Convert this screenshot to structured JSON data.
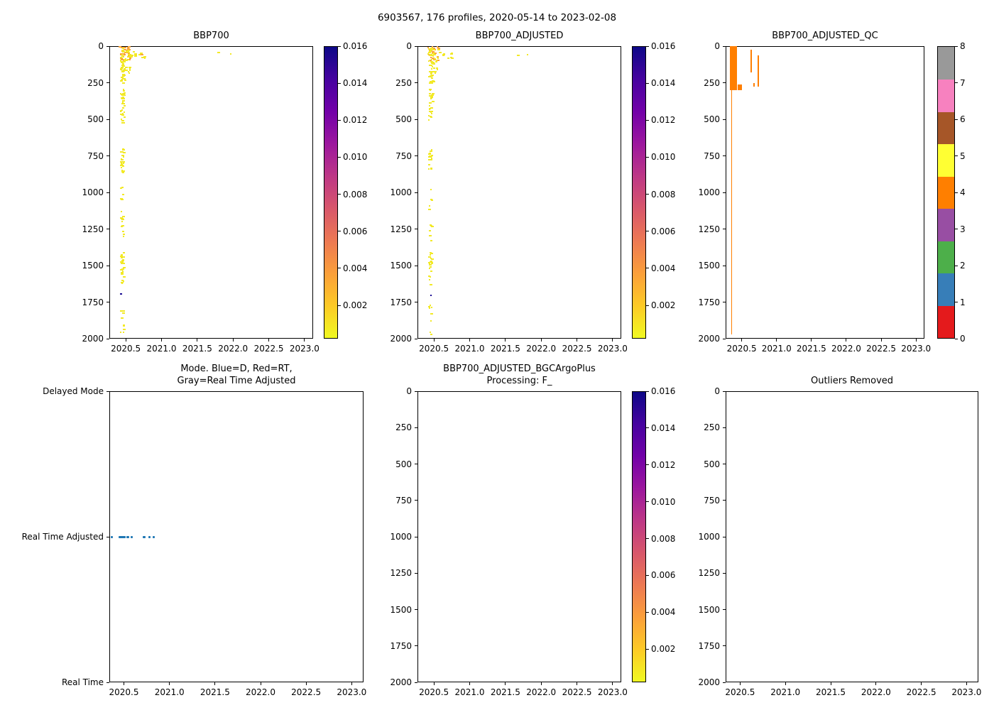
{
  "figure": {
    "title": "6903567, 176 profiles, 2020-05-14 to 2023-02-08",
    "background": "#ffffff"
  },
  "colors": {
    "axis": "#000000",
    "mark_yellow": "#f2e926",
    "mark_orange": "#fba238",
    "mark_navy": "#1c0d94",
    "mode_blue": "#1f77b4",
    "plasma_gradient_high_to_low": [
      "#0d0887",
      "#46039f",
      "#7201a8",
      "#9c179e",
      "#bd3786",
      "#d8576b",
      "#ed7953",
      "#fb9f3a",
      "#fdca26",
      "#f0f921"
    ],
    "qc_palette_0_to_8": [
      "#e41a1c",
      "#377eb8",
      "#4daf4a",
      "#984ea3",
      "#ff7f00",
      "#ffff33",
      "#a65628",
      "#f781bf",
      "#999999"
    ]
  },
  "chart_data": [
    {
      "id": "bbp700",
      "type": "scatter",
      "title": "BBP700",
      "xlim": [
        2020.27,
        2023.12
      ],
      "x_ticks": [
        2020.5,
        2021.0,
        2021.5,
        2022.0,
        2022.5,
        2023.0
      ],
      "ylim": [
        2000,
        0
      ],
      "y_ticks": [
        0,
        250,
        500,
        750,
        1000,
        1250,
        1500,
        1750,
        2000
      ],
      "colorbar": {
        "type": "gradient",
        "cmap": "plasma",
        "vmin": 0.0002,
        "vmax": 0.016,
        "ticks": [
          0.002,
          0.004,
          0.006,
          0.008,
          0.01,
          0.012,
          0.014,
          0.016
        ]
      },
      "clusters": [
        {
          "x": [
            2020.4,
            2020.57
          ],
          "depth": [
            0,
            12
          ],
          "n": 10,
          "color": "orange"
        },
        {
          "x": [
            2020.41,
            2020.56
          ],
          "depth": [
            12,
            95
          ],
          "n": 26,
          "color": "orange"
        },
        {
          "x": [
            2020.41,
            2020.57
          ],
          "depth": [
            8,
            105
          ],
          "n": 30,
          "color": "yellow"
        },
        {
          "x": [
            2020.58,
            2020.66
          ],
          "depth": [
            28,
            62
          ],
          "n": 5,
          "color": "yellow"
        },
        {
          "x": [
            2020.68,
            2020.76
          ],
          "depth": [
            40,
            80
          ],
          "n": 6,
          "color": "yellow"
        },
        {
          "x": [
            2020.7,
            2020.72
          ],
          "depth": [
            52,
            58
          ],
          "n": 1,
          "color": "orange"
        },
        {
          "x": [
            2020.42,
            2020.48
          ],
          "depth": [
            100,
            255
          ],
          "n": 32,
          "color": "yellow"
        },
        {
          "x": [
            2020.49,
            2020.56
          ],
          "depth": [
            115,
            185
          ],
          "n": 7,
          "color": "yellow"
        },
        {
          "x": [
            2020.42,
            2020.47
          ],
          "depth": [
            290,
            525
          ],
          "n": 36,
          "color": "yellow"
        },
        {
          "x": [
            2020.42,
            2020.46
          ],
          "depth": [
            690,
            865
          ],
          "n": 24,
          "color": "yellow"
        },
        {
          "x": [
            2020.42,
            2020.46
          ],
          "depth": [
            950,
            1330
          ],
          "n": 16,
          "color": "yellow"
        },
        {
          "x": [
            2020.42,
            2020.46
          ],
          "depth": [
            1400,
            1625
          ],
          "n": 26,
          "color": "yellow"
        },
        {
          "x": [
            2020.41,
            2020.45
          ],
          "depth": [
            1685,
            1700
          ],
          "n": 1,
          "color": "navy"
        },
        {
          "x": [
            2020.42,
            2020.46
          ],
          "depth": [
            1760,
            1965
          ],
          "n": 9,
          "color": "yellow"
        },
        {
          "x": [
            2021.7,
            2022.0
          ],
          "depth": [
            35,
            60
          ],
          "n": 2,
          "color": "yellow"
        }
      ]
    },
    {
      "id": "bbp700_adjusted",
      "type": "scatter",
      "title": "BBP700_ADJUSTED",
      "xlim": [
        2020.27,
        2023.12
      ],
      "x_ticks": [
        2020.5,
        2021.0,
        2021.5,
        2022.0,
        2022.5,
        2023.0
      ],
      "ylim": [
        2000,
        0
      ],
      "y_ticks": [
        0,
        250,
        500,
        750,
        1000,
        1250,
        1500,
        1750,
        2000
      ],
      "colorbar": {
        "type": "gradient",
        "cmap": "plasma",
        "vmin": 0.0002,
        "vmax": 0.016,
        "ticks": [
          0.002,
          0.004,
          0.006,
          0.008,
          0.01,
          0.012,
          0.014,
          0.016
        ]
      },
      "clusters": [
        {
          "x": [
            2020.4,
            2020.57
          ],
          "depth": [
            0,
            12
          ],
          "n": 8,
          "color": "orange"
        },
        {
          "x": [
            2020.41,
            2020.56
          ],
          "depth": [
            12,
            95
          ],
          "n": 20,
          "color": "orange"
        },
        {
          "x": [
            2020.41,
            2020.57
          ],
          "depth": [
            8,
            105
          ],
          "n": 24,
          "color": "yellow"
        },
        {
          "x": [
            2020.58,
            2020.66
          ],
          "depth": [
            28,
            62
          ],
          "n": 4,
          "color": "yellow"
        },
        {
          "x": [
            2020.68,
            2020.76
          ],
          "depth": [
            40,
            80
          ],
          "n": 5,
          "color": "yellow"
        },
        {
          "x": [
            2020.42,
            2020.48
          ],
          "depth": [
            100,
            255
          ],
          "n": 26,
          "color": "yellow"
        },
        {
          "x": [
            2020.49,
            2020.56
          ],
          "depth": [
            115,
            185
          ],
          "n": 5,
          "color": "yellow"
        },
        {
          "x": [
            2020.42,
            2020.47
          ],
          "depth": [
            290,
            525
          ],
          "n": 28,
          "color": "yellow"
        },
        {
          "x": [
            2020.42,
            2020.46
          ],
          "depth": [
            690,
            865
          ],
          "n": 18,
          "color": "yellow"
        },
        {
          "x": [
            2020.42,
            2020.46
          ],
          "depth": [
            950,
            1330
          ],
          "n": 12,
          "color": "yellow"
        },
        {
          "x": [
            2020.42,
            2020.46
          ],
          "depth": [
            1400,
            1625
          ],
          "n": 22,
          "color": "yellow"
        },
        {
          "x": [
            2020.41,
            2020.45
          ],
          "depth": [
            1685,
            1700
          ],
          "n": 1,
          "color": "navy"
        },
        {
          "x": [
            2020.42,
            2020.46
          ],
          "depth": [
            1760,
            1965
          ],
          "n": 8,
          "color": "yellow"
        },
        {
          "x": [
            2021.65,
            2021.9
          ],
          "depth": [
            35,
            60
          ],
          "n": 2,
          "color": "yellow"
        }
      ]
    },
    {
      "id": "bbp700_adjusted_qc",
      "type": "scatter",
      "title": "BBP700_ADJUSTED_QC",
      "xlim": [
        2020.27,
        2023.12
      ],
      "x_ticks": [
        2020.5,
        2021.0,
        2021.5,
        2022.0,
        2022.5,
        2023.0
      ],
      "ylim": [
        2000,
        0
      ],
      "y_ticks": [
        0,
        250,
        500,
        750,
        1000,
        1250,
        1500,
        1750,
        2000
      ],
      "colorbar": {
        "type": "discrete",
        "vmin": 0,
        "vmax": 8,
        "ticks": [
          0,
          1,
          2,
          3,
          4,
          5,
          6,
          7,
          8
        ],
        "n_colors": 9
      },
      "bars": [
        {
          "x": [
            2020.335,
            2020.43
          ],
          "depth": [
            0,
            300
          ],
          "qc": 4
        },
        {
          "x": [
            2020.35,
            2020.365
          ],
          "depth": [
            0,
            1970
          ],
          "qc": 4
        },
        {
          "x": [
            2020.445,
            2020.5
          ],
          "depth": [
            260,
            300
          ],
          "qc": 4
        },
        {
          "x": [
            2020.63,
            2020.645
          ],
          "depth": [
            25,
            180
          ],
          "qc": 4
        },
        {
          "x": [
            2020.67,
            2020.685
          ],
          "depth": [
            250,
            278
          ],
          "qc": 4
        },
        {
          "x": [
            2020.73,
            2020.745
          ],
          "depth": [
            65,
            275
          ],
          "qc": 4
        }
      ]
    },
    {
      "id": "mode",
      "type": "scatter",
      "title": "Mode. Blue=D, Red=RT,\nGray=Real Time Adjusted",
      "xlim": [
        2020.34,
        2023.13
      ],
      "x_ticks": [
        2020.5,
        2021.0,
        2021.5,
        2022.0,
        2022.5,
        2023.0
      ],
      "y_categories": [
        "Delayed Mode",
        "Real Time Adjusted",
        "Real Time"
      ],
      "segments": [
        {
          "y": "Real Time Adjusted",
          "x": [
            2020.355,
            2020.375
          ]
        },
        {
          "y": "Real Time Adjusted",
          "x": [
            2020.44,
            2020.52
          ]
        },
        {
          "y": "Real Time Adjusted",
          "x": [
            2020.525,
            2020.555
          ]
        },
        {
          "y": "Real Time Adjusted",
          "x": [
            2020.575,
            2020.6
          ]
        },
        {
          "y": "Real Time Adjusted",
          "x": [
            2020.71,
            2020.735
          ]
        },
        {
          "y": "Real Time Adjusted",
          "x": [
            2020.765,
            2020.785
          ]
        },
        {
          "y": "Real Time Adjusted",
          "x": [
            2020.815,
            2020.835
          ]
        }
      ]
    },
    {
      "id": "bgcargoplus",
      "type": "scatter",
      "title": "BBP700_ADJUSTED_BGCArgoPlus\nProcessing: F_",
      "xlim": [
        2020.27,
        2023.12
      ],
      "x_ticks": [
        2020.5,
        2021.0,
        2021.5,
        2022.0,
        2022.5,
        2023.0
      ],
      "ylim": [
        2000,
        0
      ],
      "y_ticks": [
        0,
        250,
        500,
        750,
        1000,
        1250,
        1500,
        1750,
        2000
      ],
      "colorbar": {
        "type": "gradient",
        "cmap": "plasma",
        "vmin": 0.0002,
        "vmax": 0.016,
        "ticks": [
          0.002,
          0.004,
          0.006,
          0.008,
          0.01,
          0.012,
          0.014,
          0.016
        ]
      },
      "clusters": []
    },
    {
      "id": "outliers_removed",
      "type": "scatter",
      "title": "Outliers Removed",
      "xlim": [
        2020.34,
        2023.13
      ],
      "x_ticks": [
        2020.5,
        2021.0,
        2021.5,
        2022.0,
        2022.5,
        2023.0
      ],
      "ylim": [
        2000,
        0
      ],
      "y_ticks": [
        0,
        250,
        500,
        750,
        1000,
        1250,
        1500,
        1750,
        2000
      ],
      "clusters": []
    }
  ]
}
